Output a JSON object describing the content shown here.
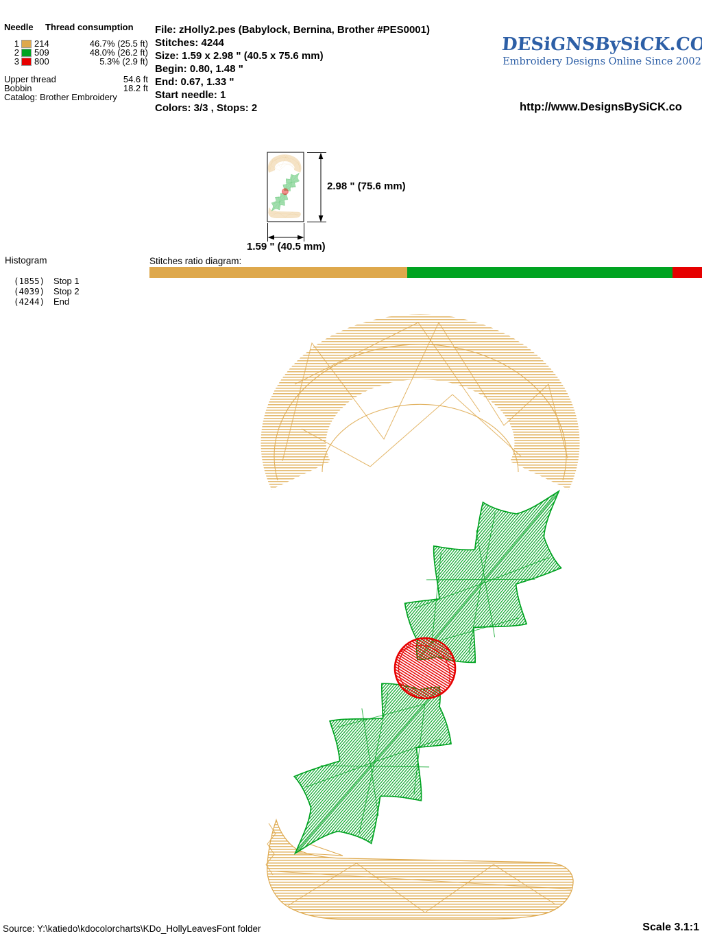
{
  "header": {
    "needle_table": {
      "col_needle": "Needle",
      "col_consumption": "Thread consumption",
      "rows": [
        {
          "needle": "1",
          "color": "#DEA84C",
          "code": "214",
          "consumption": "46.7% (25.5 ft)"
        },
        {
          "needle": "2",
          "color": "#00A321",
          "code": "509",
          "consumption": "48.0% (26.2 ft)"
        },
        {
          "needle": "3",
          "color": "#E60000",
          "code": "800",
          "consumption": "5.3% (2.9 ft)"
        }
      ],
      "upper_thread_label": "Upper thread",
      "upper_thread_value": "54.6 ft",
      "bobbin_label": "Bobbin",
      "bobbin_value": "18.2 ft",
      "catalog": "Catalog: Brother Embroidery"
    },
    "file_info": {
      "file": "File: zHolly2.pes  (Babylock, Bernina, Brother #PES0001)",
      "stitches": "Stitches: 4244",
      "size": "Size: 1.59 x 2.98 \" (40.5 x 75.6 mm)",
      "begin": "Begin: 0.80, 1.48 \"",
      "end": "End: 0.67, 1.33 \"",
      "start_needle": "Start needle: 1",
      "colors": "Colors: 3/3 , Stops: 2"
    },
    "branding": {
      "logo_text": "DESiGNSBySiCK.COM",
      "tagline": "Embroidery Designs Online Since 2002",
      "url": "http://www.DesignsBySiCK.co",
      "logo_color": "#2D5FA6"
    }
  },
  "dimensions": {
    "height_label": "2.98 \" (75.6 mm)",
    "width_label": "1.59 \" (40.5 mm)"
  },
  "histogram": {
    "title": "Histogram",
    "entries": [
      {
        "count": "(1855)",
        "label": "Stop 1"
      },
      {
        "count": "(4039)",
        "label": "Stop 2"
      },
      {
        "count": "(4244)",
        "label": "End"
      }
    ]
  },
  "ratio_diagram": {
    "label": "Stitches ratio diagram:",
    "segments": [
      {
        "name": "thread-214-tan",
        "color": "#DEA84C",
        "percent": 46.7
      },
      {
        "name": "thread-509-green",
        "color": "#00A321",
        "percent": 48.0
      },
      {
        "name": "thread-800-red",
        "color": "#E60000",
        "percent": 5.3
      }
    ]
  },
  "footer": {
    "source": "Source: Y:\\katiedo\\kdocolorcharts\\KDo_HollyLeavesFont folder",
    "scale": "Scale 3.1:1"
  },
  "design": {
    "description": "numeral-2-with-holly-leaves-and-berry",
    "thread_colors": {
      "tan": "#DEA84C",
      "green": "#00A321",
      "red": "#E60000"
    }
  }
}
